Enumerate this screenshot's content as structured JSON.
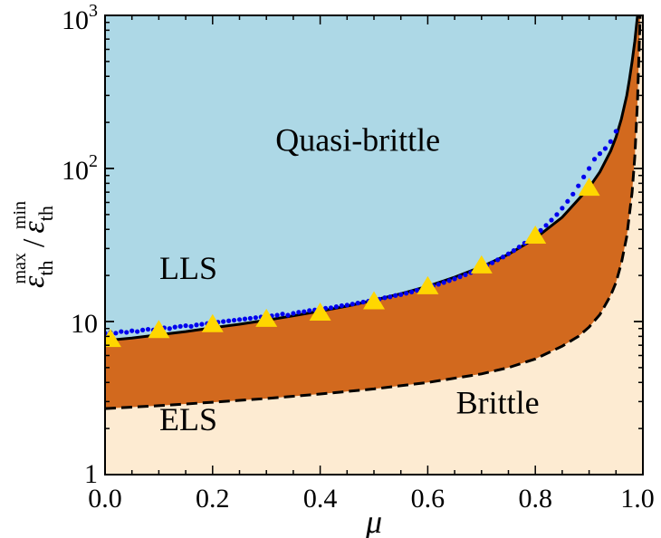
{
  "chart_data": {
    "type": "area",
    "xlabel": "μ",
    "ylabel": {
      "symbol": "ε",
      "sub": "th",
      "sup_max": "max",
      "sup_min": "min",
      "sep": "/"
    },
    "xlim": [
      0.0,
      1.0
    ],
    "ylim": [
      1,
      1000
    ],
    "yscale": "log",
    "xticks": [
      "0.0",
      "0.2",
      "0.4",
      "0.6",
      "0.8",
      "1.0"
    ],
    "yticks": [
      {
        "value": 1,
        "base": "1",
        "exp": ""
      },
      {
        "value": 10,
        "base": "10",
        "exp": ""
      },
      {
        "value": 100,
        "base": "10",
        "exp": "2"
      },
      {
        "value": 1000,
        "base": "10",
        "exp": "3"
      }
    ],
    "regions": [
      {
        "label": "Quasi-brittle",
        "color": "#add8e6",
        "x": 0.47,
        "y": 130
      },
      {
        "label": "LLS",
        "x": 0.155,
        "y": 19
      },
      {
        "label": "ELS",
        "x": 0.155,
        "y": 1.95
      },
      {
        "label": "Brittle",
        "color": "#fdebd2",
        "x": 0.73,
        "y": 2.5
      }
    ],
    "band_color": "#d2691e",
    "upper_boundary": {
      "style": "solid",
      "x": [
        0.0,
        0.05,
        0.1,
        0.15,
        0.2,
        0.25,
        0.3,
        0.35,
        0.4,
        0.45,
        0.5,
        0.55,
        0.6,
        0.65,
        0.7,
        0.75,
        0.8,
        0.85,
        0.9,
        0.92,
        0.94,
        0.95,
        0.96,
        0.97,
        0.975,
        0.98,
        0.985,
        0.99
      ],
      "y": [
        7.5,
        7.8,
        8.2,
        8.6,
        9.1,
        9.6,
        10.2,
        10.9,
        11.7,
        12.6,
        13.8,
        15.2,
        17.0,
        19.5,
        22.8,
        27.5,
        35,
        48,
        75,
        95,
        130,
        160,
        210,
        300,
        380,
        500,
        680,
        1000
      ]
    },
    "lower_boundary": {
      "style": "dashed",
      "x": [
        0.0,
        0.1,
        0.2,
        0.3,
        0.4,
        0.5,
        0.6,
        0.7,
        0.75,
        0.8,
        0.85,
        0.88,
        0.9,
        0.92,
        0.94,
        0.95,
        0.96,
        0.97,
        0.98,
        0.985,
        0.99,
        0.995
      ],
      "y": [
        2.7,
        2.82,
        2.97,
        3.14,
        3.36,
        3.63,
        4.0,
        4.55,
        5.0,
        5.7,
        6.9,
        8.0,
        9.2,
        11.1,
        14.8,
        18.0,
        24.0,
        36.0,
        70.0,
        120.0,
        280.0,
        1000.0
      ]
    },
    "series": [
      {
        "marker": "dot",
        "color": "#0000ee",
        "x": [
          0.0,
          0.01,
          0.02,
          0.03,
          0.04,
          0.05,
          0.06,
          0.07,
          0.08,
          0.09,
          0.1,
          0.11,
          0.12,
          0.13,
          0.14,
          0.15,
          0.16,
          0.17,
          0.18,
          0.19,
          0.2,
          0.21,
          0.22,
          0.23,
          0.24,
          0.25,
          0.26,
          0.27,
          0.28,
          0.29,
          0.3,
          0.31,
          0.32,
          0.33,
          0.34,
          0.35,
          0.36,
          0.37,
          0.38,
          0.39,
          0.4,
          0.41,
          0.42,
          0.43,
          0.44,
          0.45,
          0.46,
          0.47,
          0.48,
          0.49,
          0.5,
          0.51,
          0.52,
          0.53,
          0.54,
          0.55,
          0.56,
          0.57,
          0.58,
          0.59,
          0.6,
          0.61,
          0.62,
          0.63,
          0.64,
          0.65,
          0.66,
          0.67,
          0.68,
          0.69,
          0.7,
          0.71,
          0.72,
          0.73,
          0.74,
          0.75,
          0.76,
          0.77,
          0.78,
          0.79,
          0.8,
          0.81,
          0.82,
          0.83,
          0.84,
          0.85,
          0.86,
          0.87,
          0.88,
          0.89,
          0.9,
          0.91,
          0.92,
          0.93,
          0.94,
          0.95
        ],
        "y": [
          8.4,
          8.5,
          8.4,
          8.6,
          8.5,
          8.7,
          8.6,
          8.8,
          8.9,
          8.8,
          9.0,
          9.1,
          9.0,
          9.2,
          9.3,
          9.4,
          9.3,
          9.5,
          9.6,
          9.7,
          9.8,
          9.9,
          10.0,
          10.1,
          10.2,
          10.3,
          10.4,
          10.5,
          10.6,
          10.7,
          10.8,
          10.9,
          11.0,
          11.2,
          11.0,
          11.3,
          11.5,
          11.6,
          11.8,
          11.9,
          12.0,
          12.2,
          12.3,
          12.5,
          12.7,
          12.8,
          13.0,
          13.2,
          13.4,
          13.6,
          13.8,
          14.0,
          14.3,
          14.5,
          14.8,
          15.0,
          15.3,
          15.6,
          16.0,
          16.3,
          16.7,
          17.1,
          17.5,
          18.0,
          18.5,
          19.0,
          19.6,
          20.2,
          20.9,
          21.6,
          22.4,
          23.3,
          24.2,
          25.3,
          26.4,
          27.7,
          29.1,
          30.7,
          32.5,
          34.5,
          36.8,
          39.4,
          42.5,
          46.0,
          50.0,
          55.0,
          61.0,
          68.0,
          77.0,
          88.0,
          100.0,
          115.0,
          125.0,
          135.0,
          150.0,
          175.0
        ]
      },
      {
        "marker": "triangle",
        "color": "#ffd700",
        "x": [
          0.01,
          0.1,
          0.2,
          0.3,
          0.4,
          0.5,
          0.6,
          0.7,
          0.8,
          0.9
        ],
        "y": [
          7.6,
          8.7,
          9.5,
          10.3,
          11.3,
          13.4,
          16.8,
          23.0,
          36.0,
          74.0
        ]
      }
    ]
  }
}
